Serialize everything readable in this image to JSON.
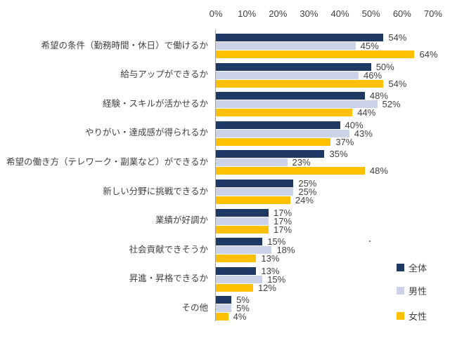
{
  "chart_data": {
    "type": "bar",
    "orientation": "horizontal",
    "title": "",
    "categories": [
      "希望の条件（勤務時間・休日）で働けるか",
      "給与アップができるか",
      "経験・スキルが活かせるか",
      "やりがい・達成感が得られるか",
      "希望の働き方（テレワーク・副業など）ができるか",
      "新しい分野に挑戦できるか",
      "業績が好調か",
      "社会貢献できそうか",
      "昇進・昇格できるか",
      "その他"
    ],
    "series": [
      {
        "name": "全体",
        "slug": "overall",
        "color": "#1F3864",
        "values": [
          54,
          50,
          48,
          40,
          35,
          25,
          17,
          15,
          13,
          5
        ]
      },
      {
        "name": "男性",
        "slug": "men",
        "color": "#CCD2E8",
        "values": [
          45,
          46,
          52,
          43,
          23,
          25,
          17,
          18,
          15,
          5
        ]
      },
      {
        "name": "女性",
        "slug": "women",
        "color": "#FFC000",
        "values": [
          64,
          54,
          44,
          37,
          48,
          24,
          17,
          13,
          12,
          4
        ]
      }
    ],
    "value_suffix": "%",
    "data_labels": true,
    "grid": false,
    "axis": {
      "min": 0,
      "max": 70,
      "step": 10,
      "tick_labels": [
        "0%",
        "10%",
        "20%",
        "30%",
        "40%",
        "50%",
        "60%",
        "70%"
      ],
      "position": "top"
    },
    "legend": {
      "position": "right",
      "labels": [
        "全体",
        "男性",
        "女性"
      ]
    }
  },
  "colors": {
    "background": "#FFFFFF",
    "axis_line": "#A0A0A0",
    "text": "#404040"
  }
}
